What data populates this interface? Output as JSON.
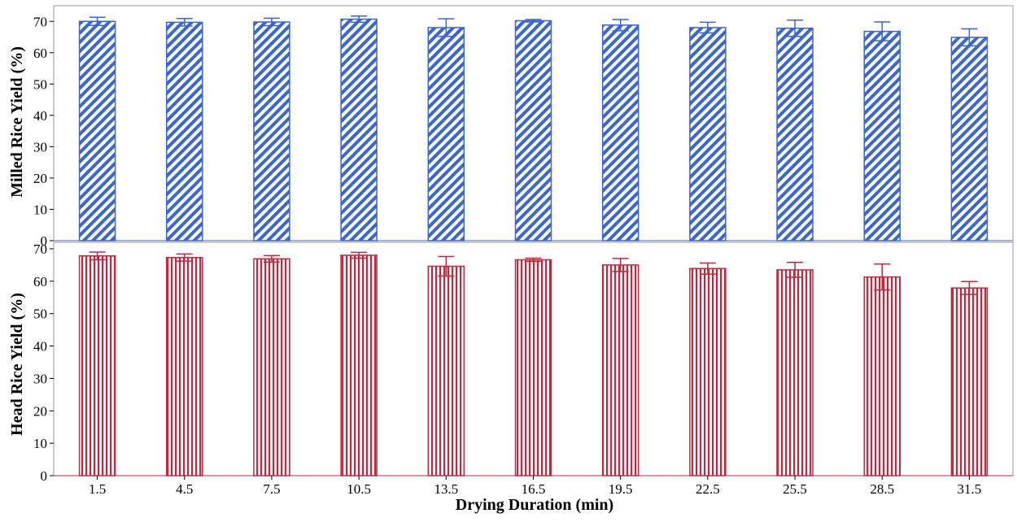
{
  "chart_data": {
    "type": "bar",
    "xlabel": "Drying Duration (min)",
    "categories": [
      "1.5",
      "4.5",
      "7.5",
      "10.5",
      "13.5",
      "16.5",
      "19.5",
      "22.5",
      "25.5",
      "28.5",
      "31.5"
    ],
    "panels": [
      {
        "ylabel": "Milled Rice Yield (%)",
        "ylim": [
          0,
          75
        ],
        "yticks": [
          0,
          10,
          20,
          30,
          40,
          50,
          60,
          70
        ],
        "color": "#3a66d4",
        "pattern": "diagonal-hatch",
        "values": [
          70.0,
          69.7,
          69.8,
          70.7,
          68.0,
          70.2,
          68.8,
          68.0,
          67.8,
          66.8,
          64.9
        ],
        "error": [
          1.3,
          1.2,
          1.2,
          1.0,
          2.8,
          0.4,
          1.8,
          1.7,
          2.6,
          3.0,
          2.7
        ]
      },
      {
        "ylabel": "Head Rice Yield (%)",
        "ylim": [
          0,
          72
        ],
        "yticks": [
          0,
          10,
          20,
          30,
          40,
          50,
          60,
          70
        ],
        "color": "#c8253a",
        "pattern": "vertical-stripes",
        "values": [
          67.8,
          67.3,
          66.9,
          68.0,
          64.6,
          66.6,
          65.0,
          63.9,
          63.5,
          61.3,
          57.9
        ],
        "error": [
          1.2,
          1.1,
          1.0,
          0.9,
          3.0,
          0.5,
          2.0,
          1.7,
          2.3,
          4.0,
          2.0
        ]
      }
    ]
  }
}
